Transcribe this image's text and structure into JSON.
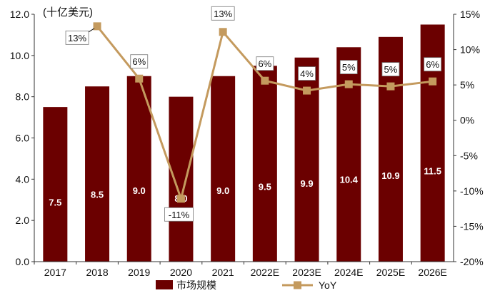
{
  "chart_data": {
    "type": "bar",
    "categories": [
      "2017",
      "2018",
      "2019",
      "2020",
      "2021",
      "2022E",
      "2023E",
      "2024E",
      "2025E",
      "2026E"
    ],
    "y_unit_label": "(十亿美元)",
    "series": [
      {
        "name": "市场规模",
        "kind": "bar",
        "axis": "left",
        "color": "#6b0000",
        "values": [
          7.5,
          8.5,
          9.0,
          8.0,
          9.0,
          9.5,
          9.9,
          10.4,
          10.9,
          11.5
        ],
        "labels": [
          "7.5",
          "8.5",
          "9.0",
          "8.0",
          "9.0",
          "9.5",
          "9.9",
          "10.4",
          "10.9",
          "11.5"
        ]
      },
      {
        "name": "YoY",
        "kind": "line",
        "axis": "right",
        "color": "#c49a5e",
        "values": [
          null,
          13.3,
          5.9,
          -11.1,
          12.5,
          5.6,
          4.2,
          5.1,
          4.8,
          5.5
        ],
        "labels": [
          null,
          "13%",
          "6%",
          "-11%",
          "13%",
          "6%",
          "4%",
          "5%",
          "5%",
          "6%"
        ]
      }
    ],
    "left_axis": {
      "min": 0,
      "max": 12,
      "step": 2,
      "tick_labels": [
        "0.0",
        "2.0",
        "4.0",
        "6.0",
        "8.0",
        "10.0",
        "12.0"
      ]
    },
    "right_axis": {
      "min": -20,
      "max": 15,
      "step": 5,
      "tick_labels": [
        "-20%",
        "-15%",
        "-10%",
        "-5%",
        "0%",
        "5%",
        "10%",
        "15%"
      ]
    },
    "grid": false,
    "legend_position": "bottom"
  }
}
